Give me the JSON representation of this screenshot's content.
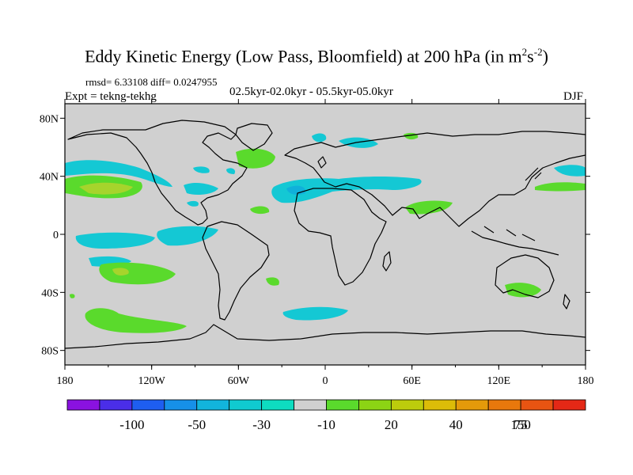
{
  "title": {
    "text": "Eddy Kinetic Energy (Low Pass, Bloomfield) at 200 hPa (in m",
    "unit_sup1": "2",
    "unit_mid": "s",
    "unit_sup2": "-2",
    "unit_end": ")"
  },
  "stats": "rmsd= 6.33108 diff= 0.0247955",
  "expt": "Expt = tekng-tekhg",
  "period": "02.5kyr-02.0kyr - 05.5kyr-05.0kyr",
  "season": "DJF",
  "map": {
    "background_color": "#d0d0d0",
    "lon_labels": [
      "180",
      "120W",
      "60W",
      "0",
      "60E",
      "120E",
      "180"
    ],
    "lat_labels": [
      "80N",
      "40N",
      "0",
      "40S",
      "80S"
    ]
  },
  "colorbar": {
    "colors": [
      "#8a12e0",
      "#4a2ee8",
      "#1e5ef0",
      "#1690e8",
      "#12b4dc",
      "#10cad0",
      "#0edcc0",
      "#d0d0d0",
      "#5ada2c",
      "#8cd414",
      "#bccc0c",
      "#dcbc08",
      "#e49a0a",
      "#e8780c",
      "#e85412",
      "#e42816"
    ],
    "labels": [
      "-100",
      "-50",
      "-30",
      "-10",
      "20",
      "40",
      "75",
      "150"
    ]
  }
}
